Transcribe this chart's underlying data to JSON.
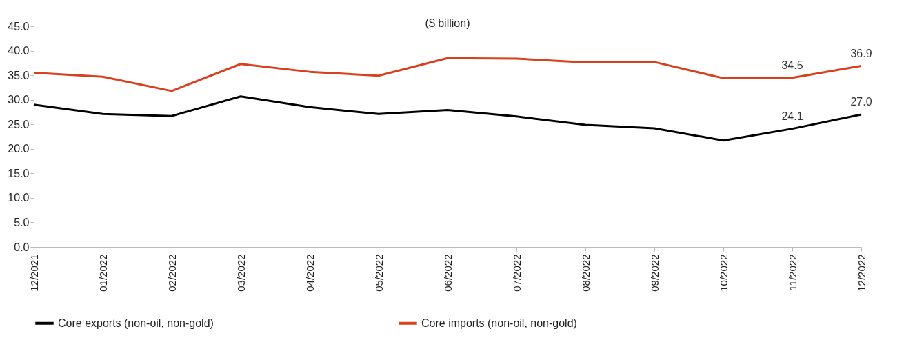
{
  "chart_data": {
    "type": "line",
    "title": "($ billion)",
    "categories": [
      "12/2021",
      "01/2022",
      "02/2022",
      "03/2022",
      "04/2022",
      "05/2022",
      "06/2022",
      "07/2022",
      "08/2022",
      "09/2022",
      "10/2022",
      "11/2022",
      "12/2022"
    ],
    "series": [
      {
        "name": "Core exports (non-oil, non-gold)",
        "color": "#000000",
        "values": [
          29.0,
          27.1,
          26.7,
          30.7,
          28.5,
          27.1,
          27.9,
          26.6,
          24.9,
          24.2,
          21.7,
          24.1,
          27.0
        ],
        "value_labels": [
          null,
          null,
          null,
          null,
          null,
          null,
          null,
          null,
          null,
          null,
          null,
          "24.1",
          "27.0"
        ]
      },
      {
        "name": "Core imports (non-oil, non-gold)",
        "color": "#d9411e",
        "values": [
          35.5,
          34.7,
          31.8,
          37.3,
          35.7,
          34.9,
          38.5,
          38.4,
          37.6,
          37.7,
          34.4,
          34.5,
          36.9
        ],
        "value_labels": [
          null,
          null,
          null,
          null,
          null,
          null,
          null,
          null,
          null,
          null,
          null,
          "34.5",
          "36.9"
        ]
      }
    ],
    "ylim": [
      0,
      45
    ],
    "yticks": [
      {
        "value": 0,
        "label": "0.0"
      },
      {
        "value": 5,
        "label": "5.0"
      },
      {
        "value": 10,
        "label": "10.0"
      },
      {
        "value": 15,
        "label": "15.0"
      },
      {
        "value": 20,
        "label": "20.0"
      },
      {
        "value": 25,
        "label": "25.0"
      },
      {
        "value": 30,
        "label": "30.0"
      },
      {
        "value": 35,
        "label": "35.0"
      },
      {
        "value": 40,
        "label": "40.0"
      },
      {
        "value": 45,
        "label": "45.0"
      }
    ],
    "grid": false,
    "legend": "bottom",
    "marker": "none",
    "line_style": "solid"
  }
}
